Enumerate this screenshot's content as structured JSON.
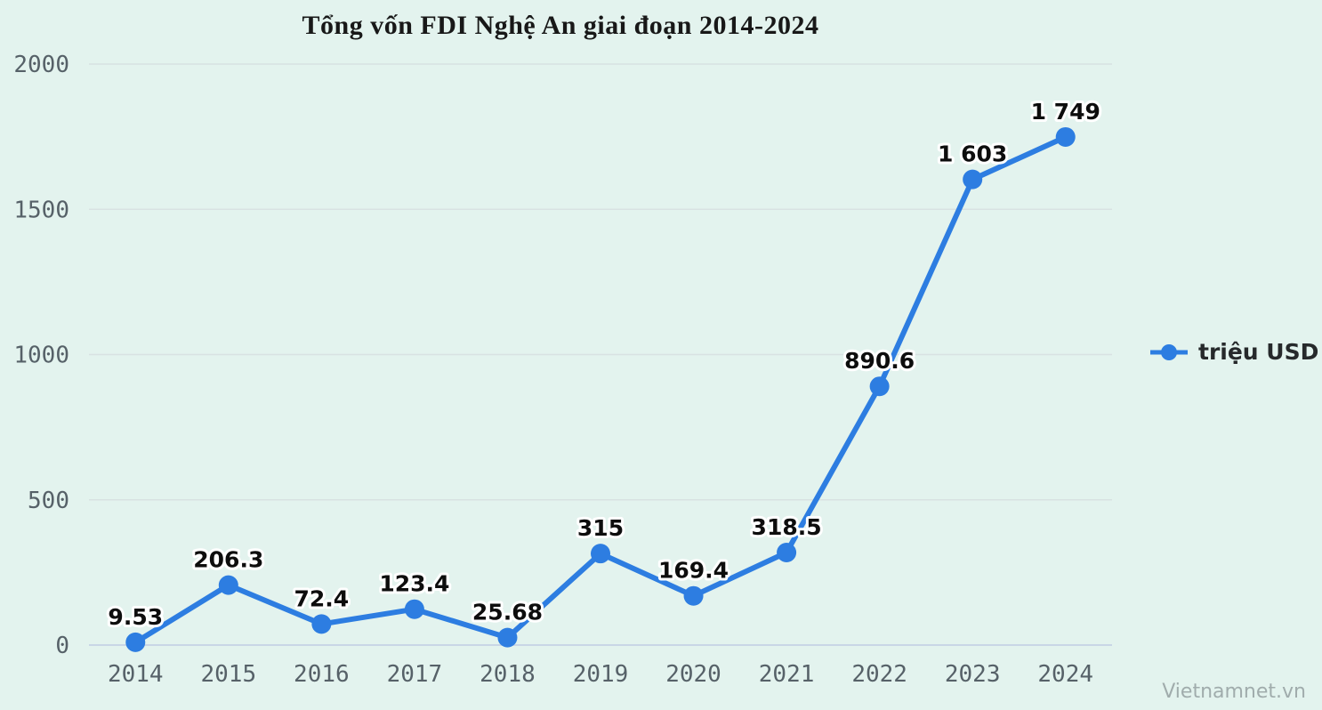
{
  "title": "Tổng vốn FDI Nghệ An giai đoạn 2014-2024",
  "legend": {
    "label": "triệu USD"
  },
  "watermark": "Vietnamnet.vn",
  "colors": {
    "background": "#e3f3ee",
    "line": "#2d7de1",
    "marker": "#2d7de1",
    "grid": "#d8e2e2",
    "baseline": "#c9d6e6",
    "axis_text": "#566168",
    "data_label_text": "#0d0d0d",
    "data_label_halo": "#ffffff",
    "title_text": "#181818",
    "watermark_text": "#a0acac"
  },
  "chart_data": {
    "type": "line",
    "title": "Tổng vốn FDI Nghệ An giai đoạn 2014-2024",
    "categories": [
      "2014",
      "2015",
      "2016",
      "2017",
      "2018",
      "2019",
      "2020",
      "2021",
      "2022",
      "2023",
      "2024"
    ],
    "series": [
      {
        "name": "triệu USD",
        "values": [
          9.53,
          206.3,
          72.4,
          123.4,
          25.68,
          315,
          169.4,
          318.5,
          890.6,
          1603,
          1749
        ],
        "labels": [
          "9.53",
          "206.3",
          "72.4",
          "123.4",
          "25.68",
          "315",
          "169.4",
          "318.5",
          "890.6",
          "1 603",
          "1 749"
        ]
      }
    ],
    "xlabel": "",
    "ylabel": "",
    "ylim": [
      0,
      2000
    ],
    "yticks": [
      0,
      500,
      1000,
      1500,
      2000
    ],
    "grid": true,
    "legend_position": "right"
  }
}
